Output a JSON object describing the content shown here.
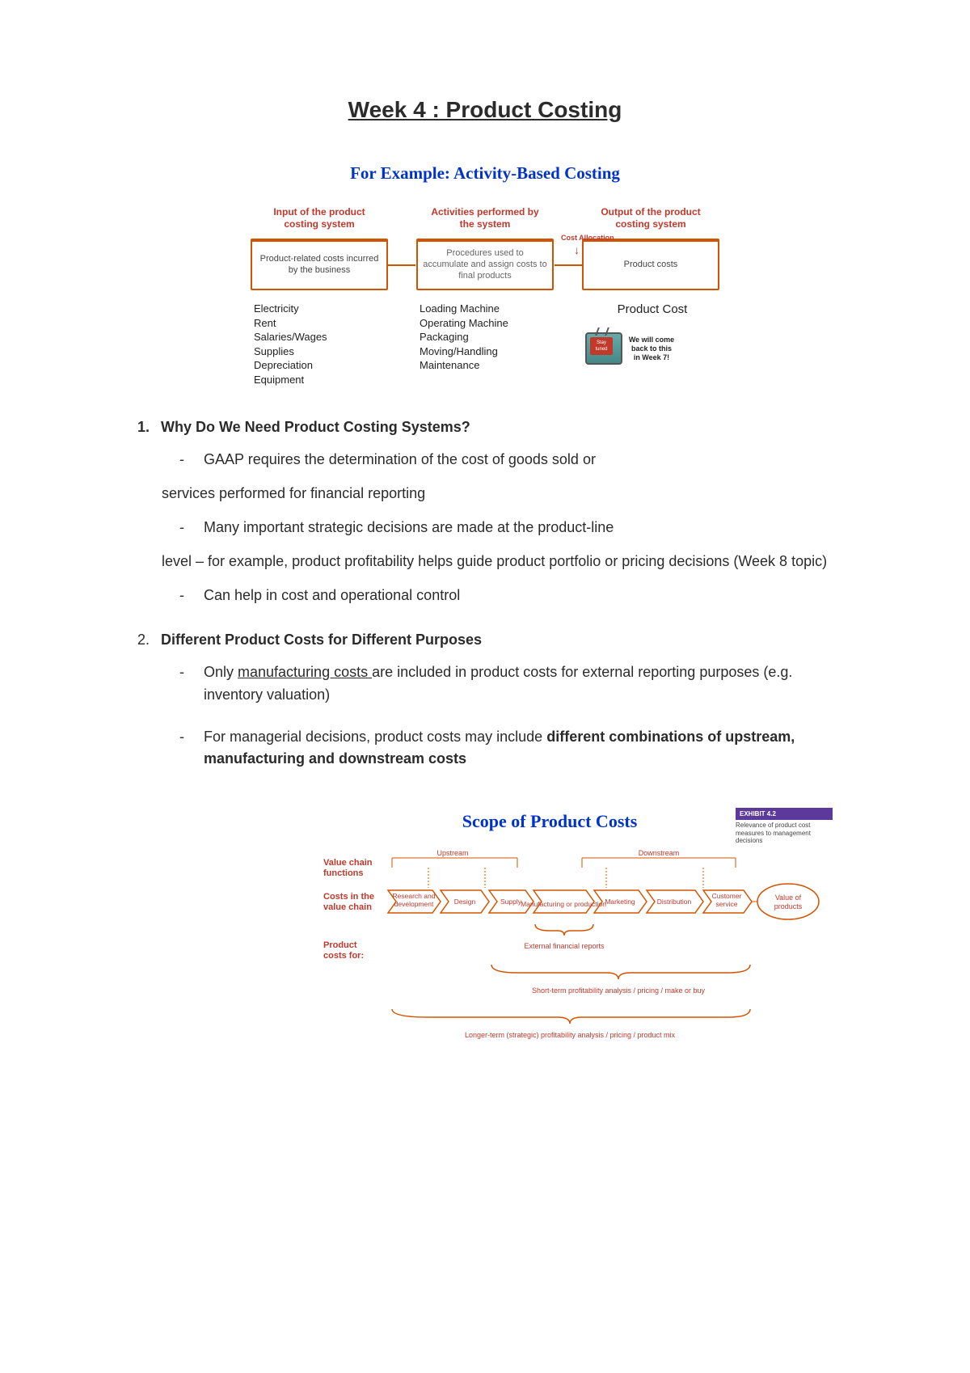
{
  "page_title": "Week 4 : Product Costing",
  "diagram1": {
    "title": "For Example: Activity-Based Costing",
    "columns": [
      {
        "head": "Input of the product costing system",
        "box": "Product-related costs incurred by the business"
      },
      {
        "head": "Activities performed by the system",
        "box": "Procedures used to accumulate and assign costs to final products"
      },
      {
        "head": "Output of the product costing system",
        "box": "Product costs"
      }
    ],
    "cost_allocation_label": "Cost Allocation",
    "examples": {
      "left": [
        "Electricity",
        "Rent",
        "Salaries/Wages",
        "Supplies",
        "Depreciation",
        "Equipment"
      ],
      "middle": [
        "Loading Machine",
        "Operating Machine",
        "Packaging",
        "Moving/Handling",
        "Maintenance"
      ],
      "right_label": "Product Cost",
      "tv_note": "We will come back to this in Week 7!",
      "tv_screen": "Stay tuned"
    },
    "colors": {
      "orange": "#d35400",
      "red": "#c0392b",
      "blue": "#0033cc"
    }
  },
  "sections": [
    {
      "num": "1.",
      "title": "Why Do We Need Product Costing Systems?",
      "bullets": [
        {
          "text": "GAAP requires the determination of the cost of goods sold or",
          "cont": "services performed for financial reporting"
        },
        {
          "text": "Many important strategic decisions are made at the product-line",
          "cont": "level – for example, product profitability helps guide product portfolio or pricing decisions (Week 8 topic)"
        },
        {
          "text": "Can help in cost and operational control"
        }
      ]
    },
    {
      "num": "2.",
      "title": "Different Product Costs for Different Purposes",
      "bullets": [
        {
          "pre": "Only ",
          "underline": "manufacturing costs ",
          "post": "are included in product costs for external reporting purposes (e.g. inventory valuation)"
        },
        {
          "pre2": "For managerial decisions, product costs may include ",
          "bold": "different combinations of upstream, manufacturing and downstream costs"
        }
      ]
    }
  ],
  "diagram2": {
    "title": "Scope of Product Costs",
    "badge_title": "EXHIBIT 4.2",
    "badge_sub": "Relevance of product cost measures to management decisions",
    "row_labels": [
      "Value chain functions",
      "Costs in the value chain",
      "Product costs for:"
    ],
    "upstream_label": "Upstream",
    "downstream_label": "Downstream",
    "chevrons": [
      "Research and development",
      "Design",
      "Supply",
      "Manufacturing or production",
      "Marketing",
      "Distribution",
      "Customer service"
    ],
    "value_oval": "Value of products",
    "brace_labels": [
      "External financial reports",
      "Short-term profitability analysis / pricing / make or buy",
      "Longer-term (strategic) profitability analysis / pricing / product mix"
    ]
  }
}
